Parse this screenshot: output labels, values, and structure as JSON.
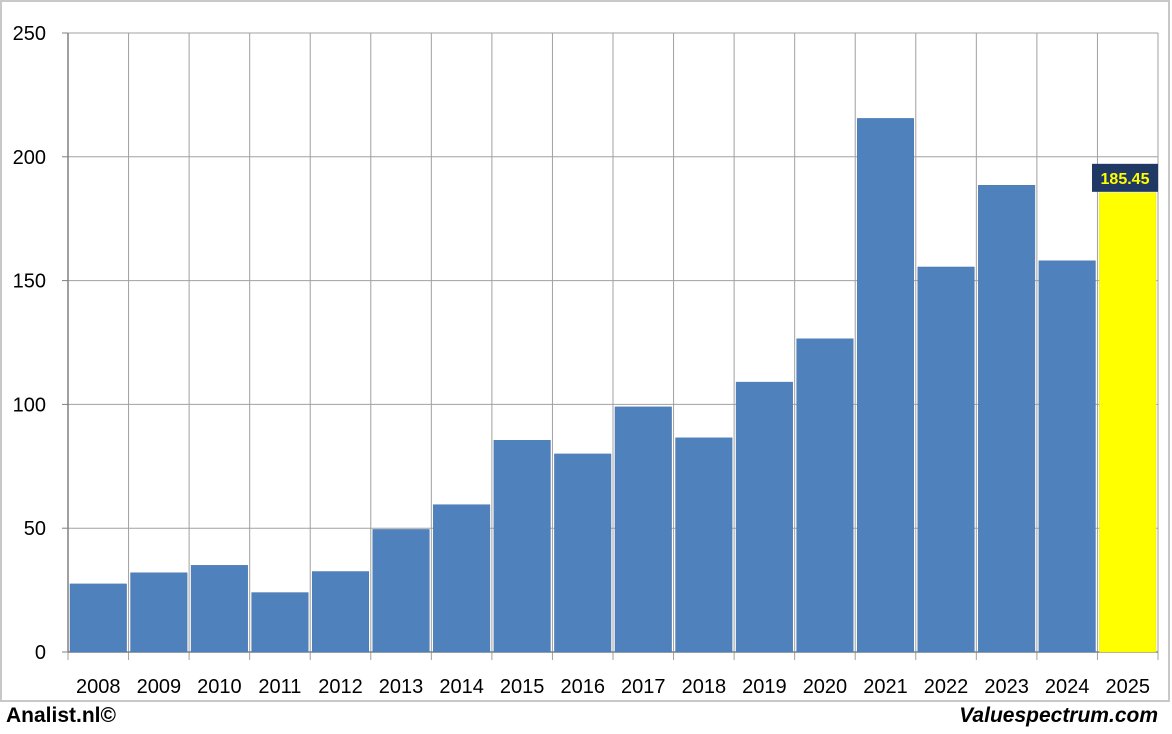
{
  "chart_data": {
    "type": "bar",
    "categories": [
      "2008",
      "2009",
      "2010",
      "2011",
      "2012",
      "2013",
      "2014",
      "2015",
      "2016",
      "2017",
      "2018",
      "2019",
      "2020",
      "2021",
      "2022",
      "2023",
      "2024",
      "2025"
    ],
    "values": [
      27.5,
      32,
      35,
      24,
      32.5,
      49.5,
      59.5,
      85.5,
      80,
      99,
      86.5,
      109,
      126.5,
      215.5,
      155.5,
      188.5,
      158,
      185.45
    ],
    "highlight": {
      "category": "2025",
      "label": "185.45",
      "bar_color": "#ffff00",
      "label_bg": "#1f3864",
      "label_color": "#ffff00"
    },
    "bar_color": "#4f81bd",
    "ylim": [
      0,
      250
    ],
    "yticks": [
      "0",
      "50",
      "100",
      "150",
      "200",
      "250"
    ],
    "grid": true,
    "title": "",
    "xlabel": "",
    "ylabel": ""
  },
  "footer": {
    "left": "Analist.nl©",
    "right": "Valuespectrum.com"
  }
}
